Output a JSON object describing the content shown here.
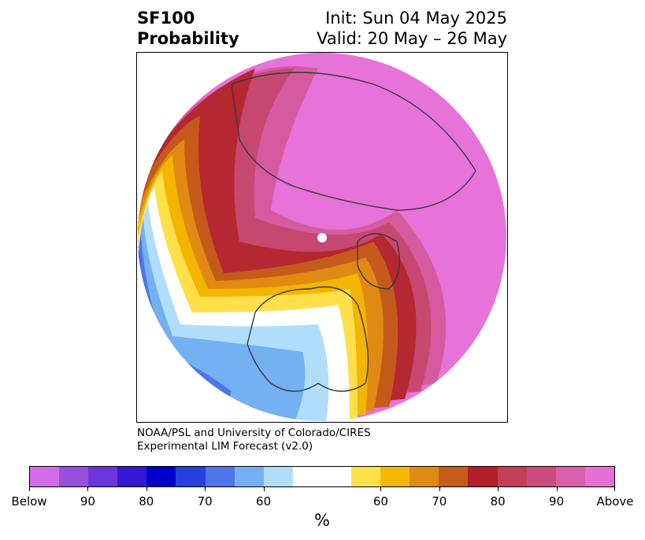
{
  "title": {
    "left_line1": "SF100",
    "left_line2": "Probability",
    "right_line1": "Init: Sun 04 May 2025",
    "right_line2": "Valid: 20 May – 26 May"
  },
  "credit": {
    "line1": "NOAA/PSL and University of Colorado/CIRES",
    "line2": "Experimental LIM Forecast (v2.0)"
  },
  "colorbar": {
    "colors": [
      "#d36ce8",
      "#9650dd",
      "#6a35db",
      "#3418d4",
      "#0000cc",
      "#2540de",
      "#4e76ea",
      "#74b1f2",
      "#b0defa",
      "#ffffff",
      "#ffffff",
      "#ffe14a",
      "#f5b800",
      "#e08a14",
      "#c85a1a",
      "#b3202a",
      "#c23f55",
      "#cc4b7d",
      "#dc5eac",
      "#e66fd5"
    ],
    "labels": [
      "Below",
      "90",
      "80",
      "70",
      "60",
      "60",
      "70",
      "80",
      "90",
      "Above"
    ],
    "unit": "%"
  },
  "map": {
    "region": "Northern Hemisphere polar view",
    "palette": {
      "magenta": "#e672da",
      "pink": "#d65aa0",
      "rose": "#c64870",
      "crimson": "#b52731",
      "rust": "#c65a1c",
      "orange": "#e08a14",
      "gold": "#f3b500",
      "yellow": "#ffe04a",
      "paleblue": "#b0defa",
      "skyblue": "#74b1f2",
      "midblue": "#4e76ea",
      "royal": "#2540de",
      "navy": "#0000cc",
      "coast": "#3a3a3a"
    }
  }
}
